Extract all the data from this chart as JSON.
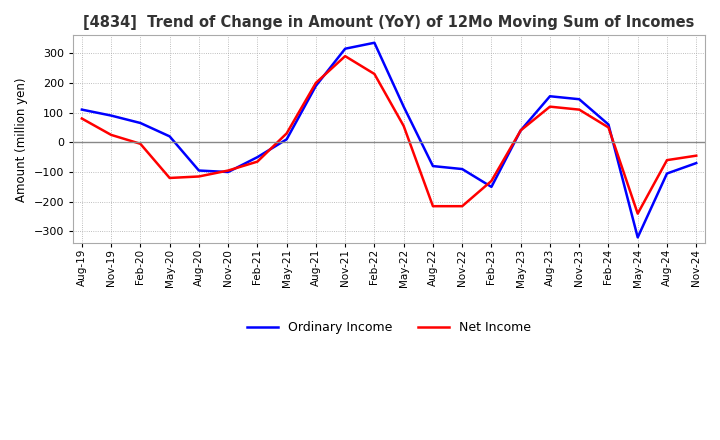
{
  "title": "[4834]  Trend of Change in Amount (YoY) of 12Mo Moving Sum of Incomes",
  "ylabel": "Amount (million yen)",
  "ylim": [
    -340,
    360
  ],
  "yticks": [
    -300,
    -200,
    -100,
    0,
    100,
    200,
    300
  ],
  "x_labels": [
    "Aug-19",
    "Nov-19",
    "Feb-20",
    "May-20",
    "Aug-20",
    "Nov-20",
    "Feb-21",
    "May-21",
    "Aug-21",
    "Nov-21",
    "Feb-22",
    "May-22",
    "Aug-22",
    "Nov-22",
    "Feb-23",
    "May-23",
    "Aug-23",
    "Nov-23",
    "Feb-24",
    "May-24",
    "Aug-24",
    "Nov-24"
  ],
  "ordinary_income": [
    110,
    90,
    65,
    20,
    -95,
    -100,
    -50,
    10,
    190,
    315,
    335,
    120,
    -80,
    -90,
    -150,
    40,
    155,
    145,
    60,
    -320,
    -105,
    -70
  ],
  "net_income": [
    80,
    25,
    -5,
    -120,
    -115,
    -95,
    -65,
    30,
    200,
    290,
    230,
    55,
    -215,
    -215,
    -130,
    40,
    120,
    110,
    50,
    -240,
    -60,
    -45
  ],
  "ordinary_color": "#0000ff",
  "net_color": "#ff0000",
  "grid_color": "#aaaaaa",
  "background_color": "#ffffff",
  "zero_line_color": "#888888"
}
